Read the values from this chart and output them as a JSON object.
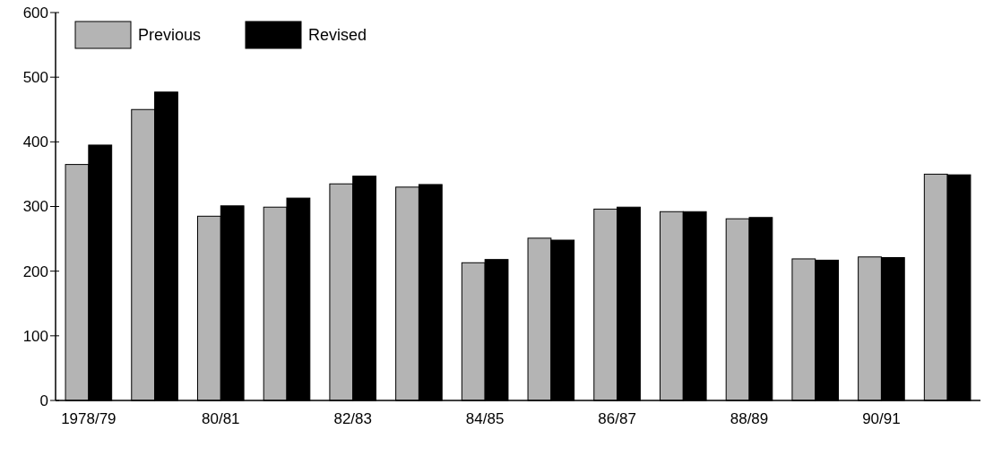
{
  "chart_data": {
    "type": "bar",
    "categories": [
      "1978/79",
      null,
      "80/81",
      null,
      "82/83",
      null,
      "84/85",
      null,
      "86/87",
      null,
      "88/89",
      null,
      "90/91",
      null
    ],
    "series": [
      {
        "name": "Previous",
        "color": "#b4b4b4",
        "values": [
          365,
          450,
          285,
          299,
          335,
          330,
          213,
          251,
          296,
          292,
          281,
          219,
          222,
          350
        ]
      },
      {
        "name": "Revised",
        "color": "#000000",
        "values": [
          395,
          477,
          301,
          313,
          347,
          334,
          218,
          248,
          299,
          292,
          283,
          217,
          221,
          349
        ]
      }
    ],
    "ylim": [
      0,
      600
    ],
    "yticks": [
      0,
      100,
      200,
      300,
      400,
      500,
      600
    ],
    "grid": false,
    "legend": "top left"
  }
}
